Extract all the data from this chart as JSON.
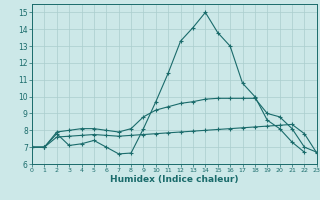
{
  "title": "",
  "xlabel": "Humidex (Indice chaleur)",
  "bg_color": "#cce8e8",
  "grid_color": "#aacece",
  "line_color": "#1a6b6b",
  "x": [
    0,
    1,
    2,
    3,
    4,
    5,
    6,
    7,
    8,
    9,
    10,
    11,
    12,
    13,
    14,
    15,
    16,
    17,
    18,
    19,
    20,
    21,
    22,
    23
  ],
  "line1": [
    7.0,
    7.0,
    7.8,
    7.1,
    7.2,
    7.4,
    7.0,
    6.6,
    6.65,
    8.1,
    9.7,
    11.4,
    13.3,
    14.1,
    15.0,
    13.8,
    13.0,
    10.8,
    10.0,
    8.6,
    8.1,
    7.3,
    6.7,
    null
  ],
  "line2": [
    7.0,
    7.0,
    7.9,
    8.0,
    8.1,
    8.1,
    8.0,
    7.9,
    8.1,
    8.8,
    9.2,
    9.4,
    9.6,
    9.7,
    9.85,
    9.9,
    9.9,
    9.9,
    9.9,
    9.0,
    8.8,
    8.1,
    7.0,
    6.7
  ],
  "line3": [
    7.0,
    7.0,
    7.6,
    7.65,
    7.7,
    7.75,
    7.7,
    7.65,
    7.7,
    7.75,
    7.8,
    7.85,
    7.9,
    7.95,
    8.0,
    8.05,
    8.1,
    8.15,
    8.2,
    8.25,
    8.3,
    8.35,
    7.8,
    6.65
  ],
  "xlim": [
    0,
    23
  ],
  "ylim": [
    6,
    15.5
  ],
  "yticks": [
    6,
    7,
    8,
    9,
    10,
    11,
    12,
    13,
    14,
    15
  ],
  "xticks": [
    0,
    1,
    2,
    3,
    4,
    5,
    6,
    7,
    8,
    9,
    10,
    11,
    12,
    13,
    14,
    15,
    16,
    17,
    18,
    19,
    20,
    21,
    22,
    23
  ]
}
